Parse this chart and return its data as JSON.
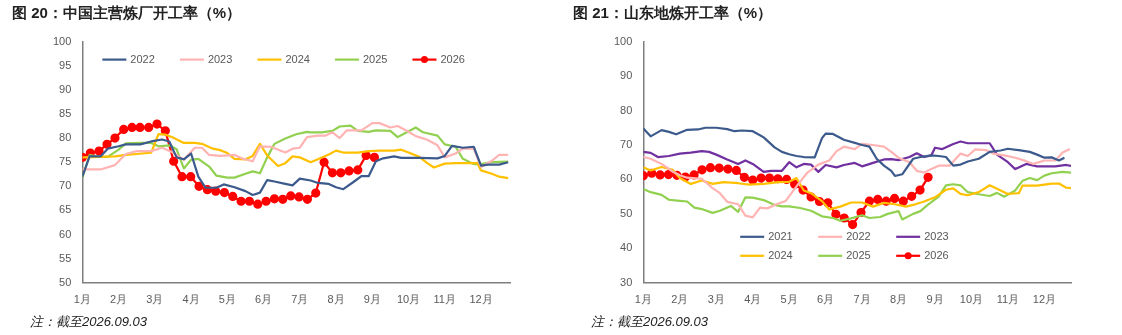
{
  "chart_data": [
    {
      "type": "line",
      "title": "图 20：中国主营炼厂开工率（%）",
      "annotations": [
        "注：截至2026.09.03"
      ],
      "legend": "top",
      "grid": false,
      "xlim": [
        1,
        12.8
      ],
      "xticks": [
        {
          "value": 1,
          "label": "1月"
        },
        {
          "value": 2,
          "label": "2月"
        },
        {
          "value": 3,
          "label": "3月"
        },
        {
          "value": 4,
          "label": "4月"
        },
        {
          "value": 5,
          "label": "5月"
        },
        {
          "value": 6,
          "label": "6月"
        },
        {
          "value": 7,
          "label": "7月"
        },
        {
          "value": 8,
          "label": "8月"
        },
        {
          "value": 9,
          "label": "9月"
        },
        {
          "value": 10,
          "label": "10月"
        },
        {
          "value": 11,
          "label": "11月"
        },
        {
          "value": 12,
          "label": "12月"
        }
      ],
      "ylim": [
        50,
        100
      ],
      "yticks": [
        50,
        55,
        60,
        65,
        70,
        75,
        80,
        85,
        90,
        95,
        100
      ],
      "series": [
        {
          "name": "2022",
          "color": "#3c5a8c",
          "marker": "none",
          "x": [
            1.0,
            1.2,
            1.5,
            1.7,
            2.0,
            2.2,
            2.6,
            2.9,
            3.2,
            3.4,
            3.6,
            3.8,
            4.0,
            4.2,
            4.4,
            4.7,
            4.9,
            5.2,
            5.5,
            5.7,
            5.9,
            6.1,
            6.3,
            6.6,
            6.8,
            7.0,
            7.3,
            7.5,
            7.8,
            8.0,
            8.2,
            8.5,
            8.7,
            8.9,
            9.1,
            9.3,
            9.6,
            9.8,
            10.3,
            10.8,
            11.0,
            11.2,
            11.5,
            11.8,
            12.0,
            12.2,
            12.5,
            12.75
          ],
          "values": [
            72,
            76.2,
            76.2,
            77.8,
            78.3,
            78.7,
            78.7,
            79.3,
            79.7,
            79.3,
            76,
            75.6,
            76.8,
            72,
            69.7,
            69.7,
            70.4,
            69.8,
            69,
            68.2,
            68.7,
            71.3,
            71,
            70.5,
            70.2,
            71.6,
            71.2,
            70.7,
            70.5,
            69.8,
            69.4,
            71,
            72.1,
            72.1,
            75.2,
            75.8,
            76.2,
            75.9,
            75.9,
            75.8,
            76.3,
            78.4,
            78,
            78.2,
            74.3,
            74.5,
            74.5,
            75
          ]
        },
        {
          "name": "2023",
          "color": "#ffb3b3",
          "marker": "none",
          "x": [
            1.0,
            1.5,
            1.9,
            2.2,
            2.5,
            2.9,
            3.2,
            3.5,
            3.8,
            4.1,
            4.3,
            4.5,
            4.8,
            5.2,
            5.4,
            5.7,
            5.9,
            6.2,
            6.6,
            6.8,
            7.0,
            7.2,
            7.5,
            7.7,
            7.9,
            8.1,
            8.3,
            8.7,
            9.0,
            9.2,
            9.5,
            9.7,
            10.0,
            10.2,
            10.5,
            10.8,
            11.0,
            11.3,
            11.5,
            11.8,
            12.0,
            12.3,
            12.5,
            12.75
          ],
          "values": [
            73.5,
            73.5,
            74.4,
            76.7,
            77.3,
            77.3,
            78,
            77,
            75.5,
            78,
            78,
            76.5,
            76.3,
            76.5,
            75.8,
            75.2,
            78.3,
            78.2,
            77,
            77.8,
            78,
            80.2,
            80.5,
            80.5,
            81.2,
            80,
            81.6,
            81.6,
            83.1,
            83.1,
            82.2,
            82.5,
            81.3,
            80.4,
            79.7,
            78.5,
            76,
            76.8,
            77.8,
            77.8,
            74,
            75.3,
            76.5,
            76.5
          ]
        },
        {
          "name": "2024",
          "color": "#ffc000",
          "marker": "none",
          "x": [
            1.0,
            1.5,
            1.9,
            2.2,
            2.5,
            2.9,
            3.1,
            3.3,
            3.5,
            3.8,
            4.1,
            4.3,
            4.6,
            4.8,
            5.0,
            5.2,
            5.5,
            5.7,
            5.9,
            6.1,
            6.4,
            6.6,
            6.8,
            7.0,
            7.3,
            7.5,
            7.8,
            8.0,
            8.2,
            8.6,
            8.9,
            9.2,
            9.6,
            9.8,
            10.0,
            10.3,
            10.5,
            10.7,
            11.0,
            11.3,
            11.9,
            12.0,
            12.3,
            12.5,
            12.75
          ],
          "values": [
            76,
            76.1,
            76.2,
            76.5,
            76.7,
            77,
            80.8,
            80.7,
            80.1,
            79,
            79,
            78.8,
            77.8,
            77.5,
            76.9,
            75.7,
            75.6,
            76.3,
            78.8,
            76.4,
            74.2,
            74.8,
            76.2,
            76,
            75,
            75.6,
            76.6,
            77.4,
            77,
            77,
            77.3,
            77.4,
            77.4,
            77.6,
            77,
            76.1,
            74.9,
            73.9,
            74.7,
            74.8,
            74.8,
            73.3,
            72.6,
            72,
            71.7
          ]
        },
        {
          "name": "2025",
          "color": "#92d050",
          "marker": "none",
          "x": [
            1.0,
            1.2,
            1.5,
            1.7,
            2.0,
            2.2,
            2.6,
            2.9,
            3.1,
            3.4,
            3.6,
            3.8,
            4.0,
            4.2,
            4.5,
            4.7,
            5.0,
            5.2,
            5.5,
            5.7,
            5.9,
            6.1,
            6.3,
            6.6,
            6.9,
            7.2,
            7.3,
            7.6,
            7.9,
            8.1,
            8.4,
            8.6,
            8.9,
            9.1,
            9.5,
            9.7,
            9.9,
            10.2,
            10.4,
            10.8,
            11.0,
            11.3,
            11.5,
            11.8,
            12.0,
            12.3,
            12.75
          ],
          "values": [
            71.8,
            76.5,
            76.1,
            76.1,
            77.6,
            78.9,
            79,
            79,
            78.3,
            78.5,
            77.7,
            73.7,
            75.5,
            75.7,
            74.1,
            72.2,
            71.8,
            71.8,
            72.6,
            73.1,
            72.7,
            76,
            78.8,
            79.9,
            80.8,
            81.3,
            81.2,
            81.2,
            81.5,
            82.4,
            82.6,
            81.5,
            81.3,
            81.6,
            81.5,
            80.2,
            81,
            82.2,
            81.2,
            80.5,
            78.7,
            78.2,
            75.7,
            74.6,
            74.6,
            75,
            75.1
          ]
        },
        {
          "name": "2026",
          "color": "#ff0000",
          "marker": "circle",
          "x": [
            1.0,
            1.22,
            1.46,
            1.68,
            1.9,
            2.14,
            2.37,
            2.59,
            2.83,
            3.06,
            3.29,
            3.52,
            3.75,
            3.99,
            4.22,
            4.45,
            4.68,
            4.92,
            5.15,
            5.38,
            5.61,
            5.84,
            6.07,
            6.3,
            6.53,
            6.75,
            6.98,
            7.21,
            7.44,
            7.67,
            7.9,
            8.13,
            8.36,
            8.6,
            8.83,
            9.06
          ],
          "values": [
            76.0,
            76.9,
            77.3,
            78.7,
            80.0,
            81.8,
            82.2,
            82.2,
            82.2,
            82.9,
            81.5,
            75.2,
            72.0,
            72.0,
            70.0,
            69.3,
            69.0,
            68.7,
            67.9,
            66.9,
            66.9,
            66.3,
            66.9,
            67.4,
            67.3,
            68.0,
            67.8,
            67.3,
            68.6,
            75.0,
            72.8,
            72.8,
            73.2,
            73.4,
            76.4,
            76.0
          ]
        }
      ]
    },
    {
      "type": "line",
      "title": "图 21：山东地炼开工率（%）",
      "annotations": [
        "注：截至2026.09.03"
      ],
      "legend": "bottom",
      "grid": false,
      "xlim": [
        1,
        12.73
      ],
      "xticks": [
        {
          "value": 1,
          "label": "1月"
        },
        {
          "value": 2,
          "label": "2月"
        },
        {
          "value": 3,
          "label": "3月"
        },
        {
          "value": 4,
          "label": "4月"
        },
        {
          "value": 5,
          "label": "5月"
        },
        {
          "value": 6,
          "label": "6月"
        },
        {
          "value": 7,
          "label": "7月"
        },
        {
          "value": 8,
          "label": "8月"
        },
        {
          "value": 9,
          "label": "9月"
        },
        {
          "value": 10,
          "label": "10月"
        },
        {
          "value": 11,
          "label": "11月"
        },
        {
          "value": 12,
          "label": "12月"
        }
      ],
      "ylim": [
        30,
        100
      ],
      "yticks": [
        30,
        40,
        50,
        60,
        70,
        80,
        90,
        100
      ],
      "series": [
        {
          "name": "2021",
          "color": "#3c5a8c",
          "marker": "none",
          "x": [
            1.0,
            1.2,
            1.5,
            1.7,
            1.9,
            2.2,
            2.5,
            2.7,
            3.0,
            3.3,
            3.5,
            3.7,
            4.0,
            4.3,
            4.6,
            4.8,
            5.0,
            5.2,
            5.4,
            5.7,
            5.9,
            6.0,
            6.2,
            6.5,
            6.8,
            7.0,
            7.2,
            7.4,
            7.6,
            7.8,
            7.9,
            8.1,
            8.4,
            8.6,
            8.9,
            9.1,
            9.3,
            9.5,
            9.7,
            9.9,
            10.2,
            10.5,
            10.8,
            11.0,
            11.3,
            11.6,
            11.8,
            12.0,
            12.2,
            12.4,
            12.55
          ],
          "values": [
            74.8,
            72.5,
            74.3,
            73.8,
            73.1,
            74.4,
            74.5,
            75,
            75,
            74.6,
            74,
            74.2,
            74,
            72.2,
            69.3,
            68,
            67.3,
            66.8,
            66.5,
            66.4,
            72,
            73.3,
            73.2,
            71.5,
            70.6,
            70,
            69.5,
            66,
            64,
            62.5,
            61,
            61.5,
            66,
            66.5,
            67,
            66.8,
            66.5,
            64,
            64.3,
            65.2,
            66,
            68,
            68.4,
            68.9,
            68.5,
            68,
            67.2,
            66.3,
            66.4,
            65.5,
            66.3
          ]
        },
        {
          "name": "2022",
          "color": "#ffb3b3",
          "marker": "none",
          "x": [
            1.0,
            1.2,
            1.5,
            1.8,
            2.0,
            2.2,
            2.6,
            2.9,
            3.1,
            3.3,
            3.6,
            3.8,
            4.0,
            4.2,
            4.4,
            4.7,
            4.9,
            5.2,
            5.5,
            5.8,
            6.1,
            6.3,
            6.5,
            6.8,
            7.0,
            7.3,
            7.6,
            7.8,
            8.0,
            8.3,
            8.5,
            8.7,
            8.9,
            9.1,
            9.4,
            9.7,
            9.9,
            10.1,
            10.4,
            10.6,
            10.9,
            11.2,
            11.5,
            11.7,
            12.0,
            12.3,
            12.5,
            12.7
          ],
          "values": [
            66.5,
            66,
            64.5,
            62.3,
            61.2,
            60.5,
            60.2,
            57.5,
            56,
            53.5,
            52.8,
            49.5,
            49,
            51.8,
            51.6,
            53,
            53.7,
            58,
            62,
            64.3,
            65.5,
            68.2,
            69.5,
            68.8,
            70.3,
            70,
            69.5,
            68,
            66.3,
            65,
            62.5,
            62,
            63,
            64,
            64,
            67.5,
            66.8,
            68.7,
            68.5,
            67.5,
            67,
            66.3,
            65.3,
            64.5,
            65.5,
            65.5,
            67.8,
            68.8
          ]
        },
        {
          "name": "2023",
          "color": "#7030a0",
          "marker": "none",
          "x": [
            1.0,
            1.2,
            1.4,
            1.7,
            2.0,
            2.3,
            2.6,
            2.8,
            3.0,
            3.3,
            3.6,
            3.8,
            4.0,
            4.3,
            4.5,
            4.8,
            5.0,
            5.2,
            5.4,
            5.6,
            5.8,
            6.0,
            6.3,
            6.5,
            6.8,
            7.0,
            7.3,
            7.6,
            7.8,
            8.0,
            8.3,
            8.5,
            8.7,
            8.9,
            9.0,
            9.2,
            9.5,
            9.7,
            9.9,
            10.2,
            10.5,
            10.7,
            11.0,
            11.2,
            11.5,
            11.8,
            12.0,
            12.3,
            12.6,
            12.73
          ],
          "values": [
            68,
            67.7,
            66.5,
            66.8,
            67.5,
            67.8,
            68.2,
            68,
            67.2,
            65.8,
            64.5,
            65.5,
            64.5,
            62.2,
            62.5,
            62.5,
            65,
            63.5,
            64.5,
            64.3,
            62.2,
            64.2,
            63.5,
            64.2,
            64.8,
            63.8,
            64.8,
            65.8,
            65.9,
            65.6,
            66.5,
            67.6,
            66.5,
            67,
            69.2,
            68.8,
            70.3,
            71,
            70.5,
            70.5,
            70.5,
            67.2,
            65,
            63,
            64.5,
            63.8,
            63.8,
            63.8,
            64.2,
            63.9
          ]
        },
        {
          "name": "2024",
          "color": "#ffc000",
          "marker": "none",
          "x": [
            1.0,
            1.2,
            1.5,
            1.8,
            2.0,
            2.3,
            2.6,
            2.9,
            3.2,
            3.6,
            3.9,
            4.3,
            4.7,
            5.0,
            5.2,
            5.4,
            5.6,
            5.9,
            6.1,
            6.4,
            6.7,
            7.0,
            7.3,
            7.6,
            7.9,
            8.2,
            8.4,
            8.7,
            9.0,
            9.3,
            9.5,
            9.7,
            9.9,
            10.2,
            10.5,
            10.8,
            11.0,
            11.3,
            11.4,
            11.8,
            12.2,
            12.4,
            12.6,
            12.73
          ],
          "values": [
            63.5,
            62.6,
            63.6,
            62.8,
            60.4,
            58.7,
            59.7,
            58.7,
            59.2,
            58.9,
            58.5,
            58.7,
            59.2,
            59.3,
            60.4,
            56.8,
            56,
            53.7,
            51.3,
            52.1,
            53.3,
            53.3,
            52.1,
            53.2,
            52.8,
            52.1,
            52.6,
            53.6,
            54.8,
            57,
            57.4,
            55.8,
            55.4,
            56.3,
            58.3,
            56.8,
            55.8,
            56,
            58.2,
            58.2,
            58.8,
            58.8,
            57.6,
            57.5
          ]
        },
        {
          "name": "2025",
          "color": "#92d050",
          "marker": "none",
          "x": [
            1.0,
            1.2,
            1.5,
            1.7,
            2.0,
            2.2,
            2.4,
            2.6,
            2.9,
            3.1,
            3.4,
            3.6,
            3.8,
            4.0,
            4.3,
            4.6,
            4.8,
            5.0,
            5.3,
            5.6,
            5.9,
            6.2,
            6.4,
            6.7,
            7.0,
            7.2,
            7.5,
            7.7,
            8.0,
            8.1,
            8.4,
            8.6,
            8.8,
            9.1,
            9.3,
            9.5,
            9.7,
            9.9,
            10.2,
            10.5,
            10.7,
            10.9,
            11.2,
            11.4,
            11.6,
            11.8,
            12.0,
            12.2,
            12.5,
            12.73
          ],
          "values": [
            57.2,
            56.3,
            55.5,
            54.1,
            53.8,
            53.6,
            51.8,
            51.4,
            50.3,
            50.9,
            52.3,
            50.6,
            54.8,
            54.7,
            54,
            52.6,
            52.2,
            52.2,
            51.7,
            50.9,
            49.3,
            48.8,
            48,
            48.7,
            49.6,
            48.8,
            49.1,
            50,
            50.8,
            48.4,
            50,
            50.8,
            52.6,
            55,
            58.3,
            58.6,
            58.3,
            56.3,
            55.7,
            55.2,
            56.1,
            55,
            56.8,
            59.6,
            60.4,
            59.8,
            61.1,
            61.8,
            62.2,
            62
          ]
        },
        {
          "name": "2026",
          "color": "#ff0000",
          "marker": "circle",
          "x": [
            1.0,
            1.23,
            1.46,
            1.69,
            1.92,
            2.15,
            2.39,
            2.61,
            2.84,
            3.08,
            3.32,
            3.55,
            3.77,
            4.0,
            4.23,
            4.46,
            4.69,
            4.93,
            5.15,
            5.38,
            5.6,
            5.83,
            6.06,
            6.28,
            6.51,
            6.74,
            6.97,
            7.2,
            7.43,
            7.66,
            7.89,
            8.13,
            8.36,
            8.59,
            8.81
          ],
          "values": [
            61.1,
            61.8,
            61.3,
            61.4,
            61.2,
            60.7,
            61.3,
            62.8,
            63.4,
            63.3,
            63.0,
            62.6,
            60.6,
            59.8,
            60.4,
            60.4,
            60.2,
            60.0,
            58.6,
            56.9,
            54.9,
            53.6,
            53.2,
            49.9,
            48.8,
            46.9,
            50.4,
            53.7,
            54.2,
            53.7,
            54.5,
            53.7,
            55.1,
            56.9,
            60.6
          ]
        }
      ]
    }
  ]
}
